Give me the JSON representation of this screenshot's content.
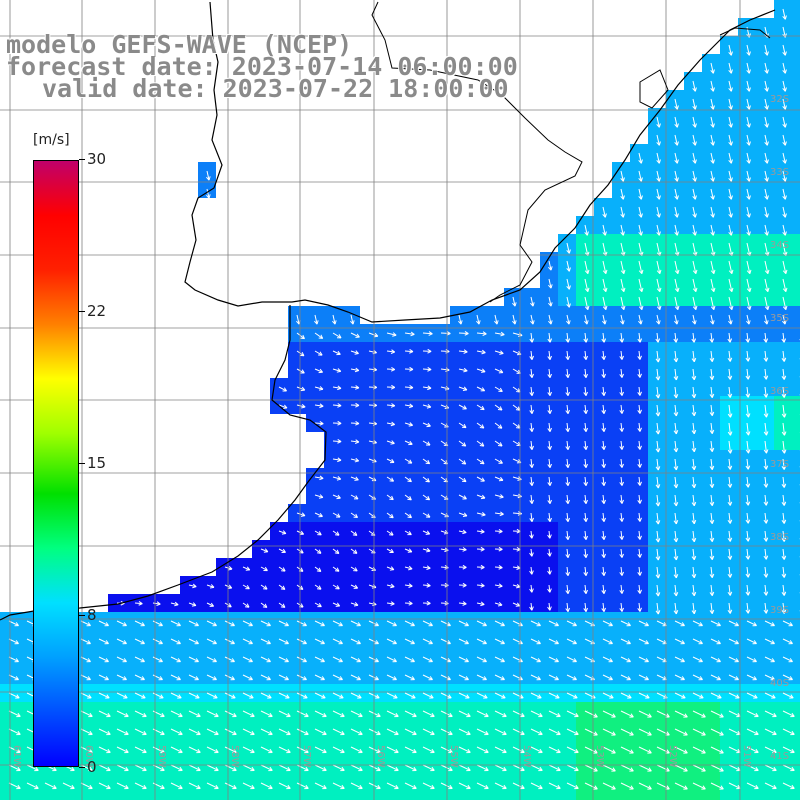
{
  "title": {
    "line1": "modelo GEFS-WAVE (NCEP)",
    "line2": "forecast date: 2023-07-14 06:00:00",
    "line3": "valid date: 2023-07-22 18:00:00"
  },
  "colorbar": {
    "units": "[m/s]",
    "ticks": [
      "30",
      "22",
      "15",
      "8",
      "0"
    ],
    "colors": [
      "#0000ff",
      "#0050ff",
      "#00a0ff",
      "#00e0ff",
      "#00ff80",
      "#00e000",
      "#a0ff00",
      "#ffff00",
      "#ff8000",
      "#ff2000",
      "#ff0000",
      "#c0006a"
    ]
  },
  "map": {
    "variable": "wind speed and direction",
    "lat_labels": [
      "32S",
      "33S",
      "34S",
      "35S",
      "36S",
      "37S",
      "38S",
      "39S",
      "40S",
      "41S"
    ],
    "lon_labels": [
      "61W",
      "60W",
      "59W",
      "58W",
      "57W",
      "56W",
      "55W",
      "54W",
      "53W",
      "52W",
      "51W"
    ],
    "colors": {
      "land": "#ffffff",
      "coast": "#000000",
      "grid": "#808080",
      "arrow": "#ffffff"
    }
  }
}
